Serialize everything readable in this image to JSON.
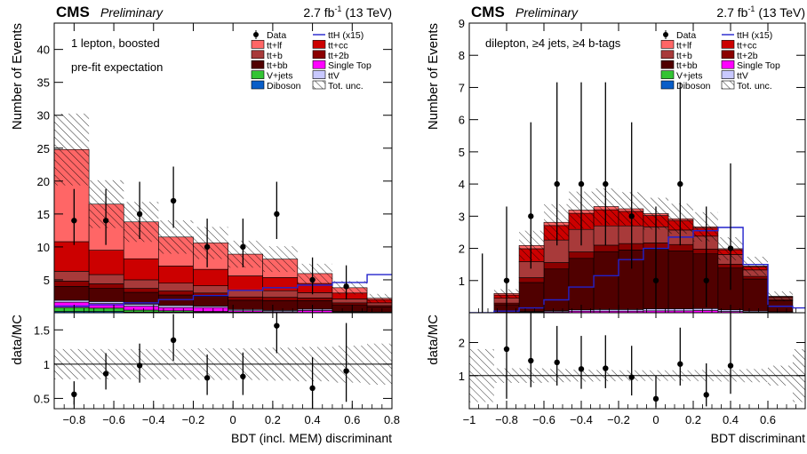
{
  "chart_data": [
    {
      "type": "bar",
      "header_left_bold": "CMS",
      "header_left_italic": "Preliminary",
      "header_right": "2.7 fb",
      "header_right_sup": "-1",
      "header_right_tail": " (13 TeV)",
      "annotations": [
        "1 lepton, boosted",
        "pre-fit expectation"
      ],
      "xlabel": "BDT (incl. MEM) discriminant",
      "ylabel": "Number of Events",
      "ratio_ylabel": "data/MC",
      "xlim": [
        -0.9,
        0.8
      ],
      "ylim": [
        0,
        44
      ],
      "ratio_ylim": [
        0.35,
        1.75
      ],
      "x_ticks": [
        -0.8,
        -0.6,
        -0.4,
        -0.2,
        0,
        0.2,
        0.4,
        0.6,
        0.8
      ],
      "x_tick_labels": [
        "−0.8",
        "−0.6",
        "−0.4",
        "−0.2",
        "0",
        "0.2",
        "0.4",
        "0.6",
        "0.8"
      ],
      "y_ticks": [
        5,
        10,
        15,
        20,
        25,
        30,
        35,
        40
      ],
      "y_tick_labels": [
        "5",
        "10",
        "15",
        "20",
        "25",
        "30",
        "35",
        "40"
      ],
      "ratio_ticks": [
        0.5,
        1,
        1.5
      ],
      "ratio_tick_labels": [
        "0.5",
        "1",
        "1.5"
      ],
      "bin_edges": [
        -0.9,
        -0.725,
        -0.55,
        -0.375,
        -0.2,
        -0.025,
        0.15,
        0.325,
        0.5,
        0.675,
        0.8
      ],
      "stack": [
        {
          "name": "Diboson",
          "color": "#0a5ec8",
          "values": [
            0.2,
            0.2,
            0.1,
            0.1,
            0.1,
            0.1,
            0.05,
            0.05,
            0.0,
            0.0
          ]
        },
        {
          "name": "V+jets",
          "color": "#33c433",
          "values": [
            0.6,
            0.5,
            0.3,
            0.2,
            0.1,
            0.0,
            0.0,
            0.0,
            0.0,
            0.0
          ]
        },
        {
          "name": "Single Top",
          "color": "#ff00ff",
          "values": [
            0.8,
            0.7,
            0.6,
            0.5,
            0.6,
            0.2,
            0.1,
            0.3,
            0.1,
            0.0
          ]
        },
        {
          "name": "ttV",
          "color": "#c8c8ff",
          "values": [
            0.3,
            0.3,
            0.3,
            0.3,
            0.2,
            0.2,
            0.2,
            0.2,
            0.1,
            0.1
          ]
        },
        {
          "name": "tt+bb",
          "color": "#500000",
          "values": [
            2.1,
            2.0,
            1.8,
            1.6,
            1.5,
            1.4,
            1.5,
            1.3,
            1.0,
            0.8
          ]
        },
        {
          "name": "tt+2b",
          "color": "#8b0000",
          "values": [
            0.8,
            0.7,
            0.6,
            0.6,
            0.5,
            0.5,
            0.5,
            0.4,
            0.3,
            0.2
          ]
        },
        {
          "name": "tt+b",
          "color": "#a83a3a",
          "values": [
            1.5,
            1.4,
            1.3,
            1.2,
            1.1,
            1.0,
            1.0,
            0.8,
            0.6,
            0.4
          ]
        },
        {
          "name": "tt+cc",
          "color": "#cc0000",
          "values": [
            4.5,
            3.7,
            3.2,
            2.6,
            2.5,
            2.2,
            2.0,
            1.4,
            0.9,
            0.5
          ]
        },
        {
          "name": "tt+lf",
          "color": "#ff6666",
          "values": [
            14.0,
            7.0,
            5.6,
            4.4,
            4.0,
            3.3,
            2.8,
            1.5,
            0.8,
            0.2
          ]
        }
      ],
      "legend_extra": [
        {
          "name": "Data",
          "kind": "marker"
        },
        {
          "name": "ttH (x15)",
          "kind": "line",
          "color": "#2222cc"
        },
        {
          "name": "Tot. unc.",
          "kind": "hatch"
        }
      ],
      "legend_order": [
        "Data",
        "ttH (x15)",
        "tt+lf",
        "tt+cc",
        "tt+b",
        "tt+2b",
        "tt+bb",
        "Single Top",
        "V+jets",
        "ttV",
        "Diboson",
        "Tot. unc."
      ],
      "signal": {
        "name": "ttH (x15)",
        "color": "#2222cc",
        "values": [
          1.0,
          1.2,
          1.5,
          2.0,
          2.6,
          3.4,
          3.8,
          4.2,
          4.6,
          5.8
        ]
      },
      "unc_rel": [
        0.22,
        0.22,
        0.22,
        0.22,
        0.23,
        0.23,
        0.24,
        0.25,
        0.27,
        0.3
      ],
      "data": {
        "x": [
          -0.8,
          -0.64,
          -0.47,
          -0.3,
          -0.13,
          0.05,
          0.22,
          0.4,
          0.57
        ],
        "y": [
          14,
          14,
          15,
          17,
          10,
          10,
          15,
          5,
          4
        ],
        "err_lo": [
          3.7,
          3.7,
          3.8,
          4.1,
          3.1,
          3.1,
          3.8,
          2.2,
          2.0
        ],
        "err_hi": [
          4.8,
          4.8,
          4.9,
          5.2,
          4.3,
          4.3,
          4.9,
          3.4,
          3.2
        ]
      },
      "ratio": {
        "x": [
          -0.8,
          -0.64,
          -0.47,
          -0.3,
          -0.13,
          0.05,
          0.22,
          0.4,
          0.57
        ],
        "y": [
          0.56,
          0.86,
          0.98,
          1.35,
          0.8,
          0.82,
          1.56,
          0.65,
          0.9
        ],
        "err_lo": [
          0.15,
          0.23,
          0.25,
          0.3,
          0.25,
          0.27,
          0.4,
          0.3,
          0.45
        ],
        "err_hi": [
          0.19,
          0.3,
          0.32,
          0.38,
          0.34,
          0.35,
          0.5,
          0.45,
          0.7
        ]
      }
    },
    {
      "type": "bar",
      "header_left_bold": "CMS",
      "header_left_italic": "Preliminary",
      "header_right": "2.7 fb",
      "header_right_sup": "-1",
      "header_right_tail": " (13 TeV)",
      "annotations": [
        "dilepton, ≥4 jets, ≥4 b-tags"
      ],
      "xlabel": "BDT discriminant",
      "ylabel": "Number of Events",
      "ratio_ylabel": "data/MC",
      "xlim": [
        -1.0,
        0.8
      ],
      "ylim": [
        0,
        9
      ],
      "ratio_ylim": [
        0,
        2.9
      ],
      "x_ticks": [
        -1,
        -0.8,
        -0.6,
        -0.4,
        -0.2,
        0,
        0.2,
        0.4,
        0.6
      ],
      "x_tick_labels": [
        "−1",
        "−0.8",
        "−0.6",
        "−0.4",
        "−0.2",
        "0",
        "0.2",
        "0.4",
        "0.6"
      ],
      "y_ticks": [
        1,
        2,
        3,
        4,
        5,
        6,
        7,
        8,
        9
      ],
      "y_tick_labels": [
        "1",
        "2",
        "3",
        "4",
        "5",
        "6",
        "7",
        "8",
        "9"
      ],
      "ratio_ticks": [
        1,
        2
      ],
      "ratio_tick_labels": [
        "1",
        "2"
      ],
      "bin_edges": [
        -1.0,
        -0.867,
        -0.733,
        -0.6,
        -0.467,
        -0.333,
        -0.2,
        -0.067,
        0.067,
        0.2,
        0.333,
        0.467,
        0.6,
        0.733,
        0.8
      ],
      "stack": [
        {
          "name": "Diboson",
          "color": "#0a5ec8",
          "values": [
            0,
            0,
            0,
            0,
            0,
            0,
            0,
            0,
            0,
            0,
            0,
            0,
            0,
            0
          ]
        },
        {
          "name": "V+jets",
          "color": "#33c433",
          "values": [
            0,
            0,
            0,
            0,
            0,
            0,
            0,
            0,
            0,
            0,
            0,
            0,
            0,
            0
          ]
        },
        {
          "name": "Single Top",
          "color": "#ff00ff",
          "values": [
            0,
            0,
            0.02,
            0.03,
            0.05,
            0.05,
            0.05,
            0.06,
            0.06,
            0.07,
            0.04,
            0.02,
            0.01,
            0
          ]
        },
        {
          "name": "ttV",
          "color": "#c8c8ff",
          "values": [
            0,
            0,
            0.02,
            0.03,
            0.04,
            0.05,
            0.05,
            0.06,
            0.06,
            0.06,
            0.05,
            0.03,
            0.02,
            0
          ]
        },
        {
          "name": "tt+bb",
          "color": "#500000",
          "values": [
            0,
            0.25,
            0.9,
            1.3,
            1.6,
            1.8,
            1.85,
            1.85,
            1.8,
            1.7,
            1.3,
            1.0,
            0.35,
            0
          ]
        },
        {
          "name": "tt+2b",
          "color": "#8b0000",
          "values": [
            0,
            0.05,
            0.15,
            0.2,
            0.2,
            0.2,
            0.2,
            0.2,
            0.2,
            0.15,
            0.12,
            0.08,
            0.03,
            0
          ]
        },
        {
          "name": "tt+b",
          "color": "#a83a3a",
          "values": [
            0,
            0.15,
            0.5,
            0.7,
            0.7,
            0.6,
            0.55,
            0.5,
            0.45,
            0.4,
            0.3,
            0.2,
            0.06,
            0
          ]
        },
        {
          "name": "tt+cc",
          "color": "#cc0000",
          "values": [
            0,
            0.1,
            0.4,
            0.45,
            0.5,
            0.5,
            0.45,
            0.35,
            0.3,
            0.25,
            0.15,
            0.1,
            0.03,
            0
          ]
        },
        {
          "name": "tt+lf",
          "color": "#ff6666",
          "values": [
            0,
            0.05,
            0.1,
            0.1,
            0.1,
            0.1,
            0.08,
            0.06,
            0.05,
            0.04,
            0.03,
            0.02,
            0.01,
            0
          ]
        }
      ],
      "legend_extra": [
        {
          "name": "Data",
          "kind": "marker"
        },
        {
          "name": "ttH (x15)",
          "kind": "line",
          "color": "#2222cc"
        },
        {
          "name": "Tot. unc.",
          "kind": "hatch"
        }
      ],
      "legend_order": [
        "Data",
        "ttH (x15)",
        "tt+lf",
        "tt+cc",
        "tt+b",
        "tt+2b",
        "tt+bb",
        "Single Top",
        "V+jets",
        "ttV",
        "Diboson",
        "Tot. unc."
      ],
      "signal": {
        "name": "ttH (x15)",
        "color": "#2222cc",
        "values": [
          0,
          0.05,
          0.15,
          0.4,
          0.8,
          1.15,
          1.65,
          2.0,
          2.35,
          2.55,
          2.65,
          1.5,
          0.2,
          0.15
        ]
      },
      "unc_rel": [
        0.4,
        0.22,
        0.22,
        0.2,
        0.18,
        0.17,
        0.16,
        0.16,
        0.16,
        0.17,
        0.18,
        0.2,
        0.3,
        0.4
      ],
      "data": {
        "x": [
          -0.93,
          -0.8,
          -0.67,
          -0.53,
          -0.4,
          -0.27,
          -0.13,
          0.0,
          0.13,
          0.27,
          0.4
        ],
        "y": [
          0,
          1,
          3,
          4,
          4,
          4,
          3,
          1,
          4,
          1,
          2
        ],
        "err_lo": [
          0,
          0.83,
          1.63,
          1.91,
          1.91,
          1.91,
          1.63,
          0.83,
          1.91,
          0.83,
          1.29
        ],
        "err_hi": [
          1.84,
          2.3,
          2.92,
          3.16,
          3.16,
          3.16,
          2.92,
          2.3,
          3.16,
          2.3,
          2.64
        ]
      },
      "ratio": {
        "x": [
          -0.8,
          -0.67,
          -0.53,
          -0.4,
          -0.27,
          -0.13,
          0.0,
          0.13,
          0.27,
          0.4
        ],
        "y": [
          1.8,
          1.45,
          1.4,
          1.2,
          1.22,
          0.95,
          0.3,
          1.35,
          0.42,
          1.3
        ],
        "err_lo": [
          1.5,
          0.8,
          0.7,
          0.6,
          0.6,
          0.55,
          0.25,
          0.65,
          0.35,
          0.85
        ],
        "err_hi": [
          2.5,
          1.5,
          1.1,
          1.0,
          1.0,
          0.95,
          0.7,
          1.1,
          0.95,
          1.7
        ]
      }
    }
  ]
}
